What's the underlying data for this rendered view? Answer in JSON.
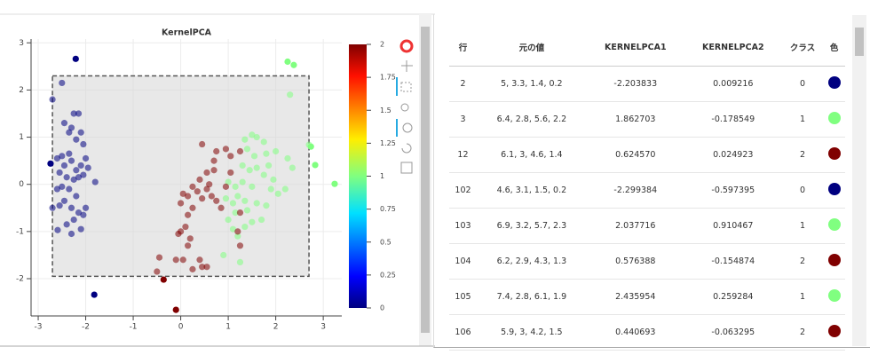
{
  "chart_data": {
    "type": "scatter",
    "title": "KernelPCA",
    "xlim": [
      -3.15,
      3.39
    ],
    "ylim": [
      -2.79,
      3.08
    ],
    "xticks": [
      -3,
      -2,
      -1,
      0,
      1,
      2,
      3
    ],
    "yticks": [
      -2,
      -1,
      0,
      1,
      2,
      3
    ],
    "grid": true,
    "selection": {
      "xlim": [
        -2.7,
        2.7
      ],
      "ylim": [
        -1.95,
        2.3
      ]
    },
    "colorbar": {
      "lim": [
        0,
        2
      ],
      "ticks": [
        0,
        0.25,
        0.5,
        0.75,
        1,
        1.25,
        1.5,
        1.75,
        2
      ]
    },
    "series": [
      {
        "color": "#000080",
        "x": [
          -2.21,
          -2.74,
          -2.59,
          -1.82,
          -2.7,
          -2.5,
          -2.45,
          -2.35,
          -2.25,
          -2.15,
          -2.3,
          -2.2,
          -2.1,
          -2.05,
          -2.6,
          -2.5,
          -2.45,
          -2.35,
          -2.3,
          -2.2,
          -2.1,
          -2.0,
          -1.95,
          -2.55,
          -2.4,
          -2.25,
          -2.15,
          -2.05,
          -1.8,
          -2.5,
          -2.35,
          -2.2,
          -2.55,
          -2.45,
          -2.3,
          -2.15,
          -2.05,
          -2.0,
          -2.25,
          -2.4,
          -2.3,
          -2.1,
          -2.7,
          -2.6
        ],
        "values": [
          2.66,
          0.44,
          -0.97,
          -2.34,
          1.8,
          2.15,
          1.3,
          1.1,
          1.5,
          1.5,
          1.2,
          0.95,
          1.1,
          0.85,
          0.55,
          0.6,
          0.4,
          0.65,
          0.5,
          0.3,
          0.4,
          0.55,
          0.35,
          0.25,
          0.15,
          0.1,
          0.15,
          0.2,
          0.05,
          -0.05,
          -0.1,
          -0.25,
          -0.45,
          -0.35,
          -0.5,
          -0.6,
          -0.65,
          -0.5,
          -0.75,
          -0.85,
          -1.05,
          -0.95,
          -0.5,
          -0.1
        ]
      },
      {
        "color": "#80ff80",
        "x": [
          2.25,
          2.38,
          2.7,
          2.74,
          2.83,
          3.24,
          1.35,
          1.5,
          1.6,
          1.75,
          1.4,
          1.55,
          1.8,
          2.0,
          2.25,
          2.35,
          2.3,
          1.3,
          1.45,
          1.6,
          1.85,
          1.95,
          1.75,
          1.5,
          1.3,
          1.15,
          1.0,
          0.95,
          1.1,
          1.2,
          1.35,
          1.4,
          1.6,
          1.8,
          1.9,
          2.05,
          1.0,
          1.1,
          1.2,
          1.35,
          1.5,
          1.7,
          1.25,
          0.9,
          1.15,
          2.2
        ],
        "values": [
          2.6,
          2.53,
          0.84,
          0.8,
          0.41,
          0.01,
          0.95,
          1.05,
          1.0,
          0.9,
          0.75,
          0.6,
          0.65,
          0.7,
          0.55,
          0.35,
          1.9,
          0.4,
          0.3,
          0.35,
          0.4,
          0.1,
          0.2,
          -0.05,
          0.05,
          -0.05,
          0.05,
          -0.3,
          -0.4,
          -0.25,
          -0.35,
          -0.55,
          -0.4,
          -0.45,
          -0.1,
          -0.2,
          -0.75,
          -0.95,
          -1.1,
          -0.9,
          -0.8,
          -0.75,
          -1.65,
          -1.5,
          -0.6,
          -0.1
        ]
      },
      {
        "color": "#800000",
        "x": [
          -0.36,
          -0.1,
          -0.5,
          -0.45,
          -0.05,
          0.0,
          -0.1,
          0.05,
          0.25,
          0.4,
          0.45,
          0.55,
          0.15,
          0.2,
          0.1,
          0.15,
          0.0,
          0.05,
          0.15,
          0.25,
          0.35,
          0.45,
          0.55,
          0.6,
          0.65,
          0.75,
          0.85,
          0.4,
          0.55,
          0.7,
          0.7,
          0.75,
          0.95,
          1.05,
          1.25,
          0.45,
          1.25,
          1.25,
          1.2,
          0.95,
          1.05,
          0.25
        ],
        "values": [
          -2.02,
          -2.66,
          -1.85,
          -1.55,
          -1.05,
          -1.0,
          -1.6,
          -1.6,
          -1.8,
          -1.6,
          -1.75,
          -1.75,
          -1.3,
          -1.15,
          -0.9,
          -0.65,
          -0.4,
          -0.2,
          -0.25,
          -0.5,
          -0.15,
          -0.3,
          -0.1,
          0.0,
          -0.25,
          -0.35,
          -0.5,
          0.1,
          0.25,
          0.3,
          0.5,
          0.7,
          0.75,
          0.6,
          0.7,
          0.85,
          -0.6,
          -1.3,
          -1.0,
          -0.05,
          0.25,
          -0.05
        ]
      }
    ]
  },
  "table": {
    "columns": [
      "行",
      "元の値",
      "KERNELPCA1",
      "KERNELPCA2",
      "クラス",
      "色"
    ],
    "rows": [
      [
        "2",
        "5, 3.3, 1.4, 0.2",
        "-2.203833",
        "0.009216",
        "0"
      ],
      [
        "3",
        "6.4, 2.8, 5.6, 2.2",
        "1.862703",
        "-0.178549",
        "1"
      ],
      [
        "12",
        "6.1, 3, 4.6, 1.4",
        "0.624570",
        "0.024923",
        "2"
      ],
      [
        "102",
        "4.6, 3.1, 1.5, 0.2",
        "-2.299384",
        "-0.597395",
        "0"
      ],
      [
        "103",
        "6.9, 3.2, 5.7, 2.3",
        "2.037716",
        "0.910467",
        "1"
      ],
      [
        "104",
        "6.2, 2.9, 4.3, 1.3",
        "0.576388",
        "-0.154874",
        "2"
      ],
      [
        "105",
        "7.4, 2.8, 6.1, 1.9",
        "2.435954",
        "0.259284",
        "1"
      ],
      [
        "106",
        "5.9, 3, 4.2, 1.5",
        "0.440693",
        "-0.063295",
        "2"
      ]
    ]
  }
}
